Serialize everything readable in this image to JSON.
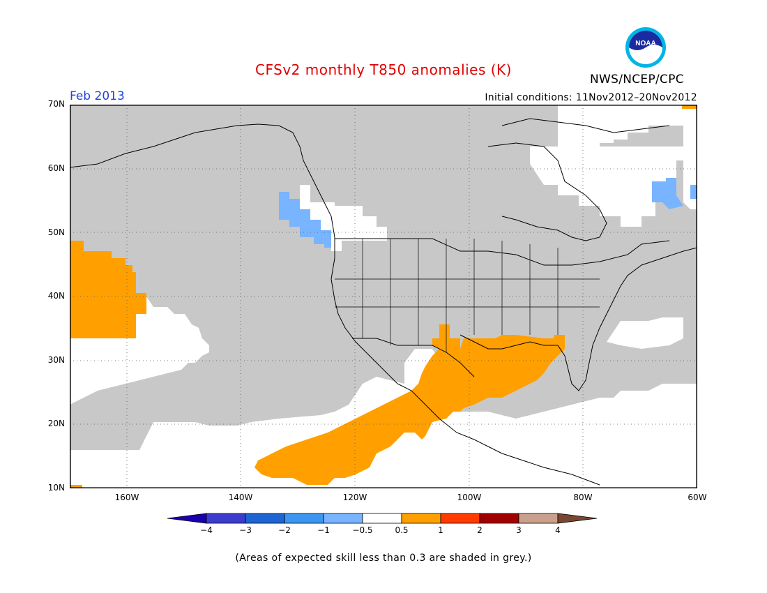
{
  "header": {
    "title": "CFSv2 monthly T850 anomalies (K)",
    "month": "Feb 2013",
    "initial_conditions": "Initial conditions: 11Nov2012–20Nov2012",
    "agency": "NWS/NCEP/CPC",
    "logo_text": "NOAA"
  },
  "map": {
    "lat_labels": [
      "70N",
      "60N",
      "50N",
      "40N",
      "30N",
      "20N",
      "10N"
    ],
    "lon_labels": [
      "160W",
      "140W",
      "120W",
      "100W",
      "80W",
      "60W"
    ],
    "colors": {
      "no_skill": "#c8c8c8",
      "positive_05_1": "#ffa000",
      "negative_1_05": "#78b4ff",
      "background": "#ffffff"
    }
  },
  "legend": {
    "labels": [
      "-4",
      "-3",
      "-2",
      "-1",
      "-0.5",
      "0.5",
      "1",
      "2",
      "3",
      "4"
    ],
    "colors": [
      "#1a00b0",
      "#3c3ccc",
      "#1e64d2",
      "#3c96f0",
      "#78b4ff",
      "#ffffff",
      "#ffa000",
      "#ff3c00",
      "#a00000",
      "#c8a08c",
      "#784632"
    ]
  },
  "footnote": "(Areas of expected skill less than 0.3 are shaded in grey.)"
}
